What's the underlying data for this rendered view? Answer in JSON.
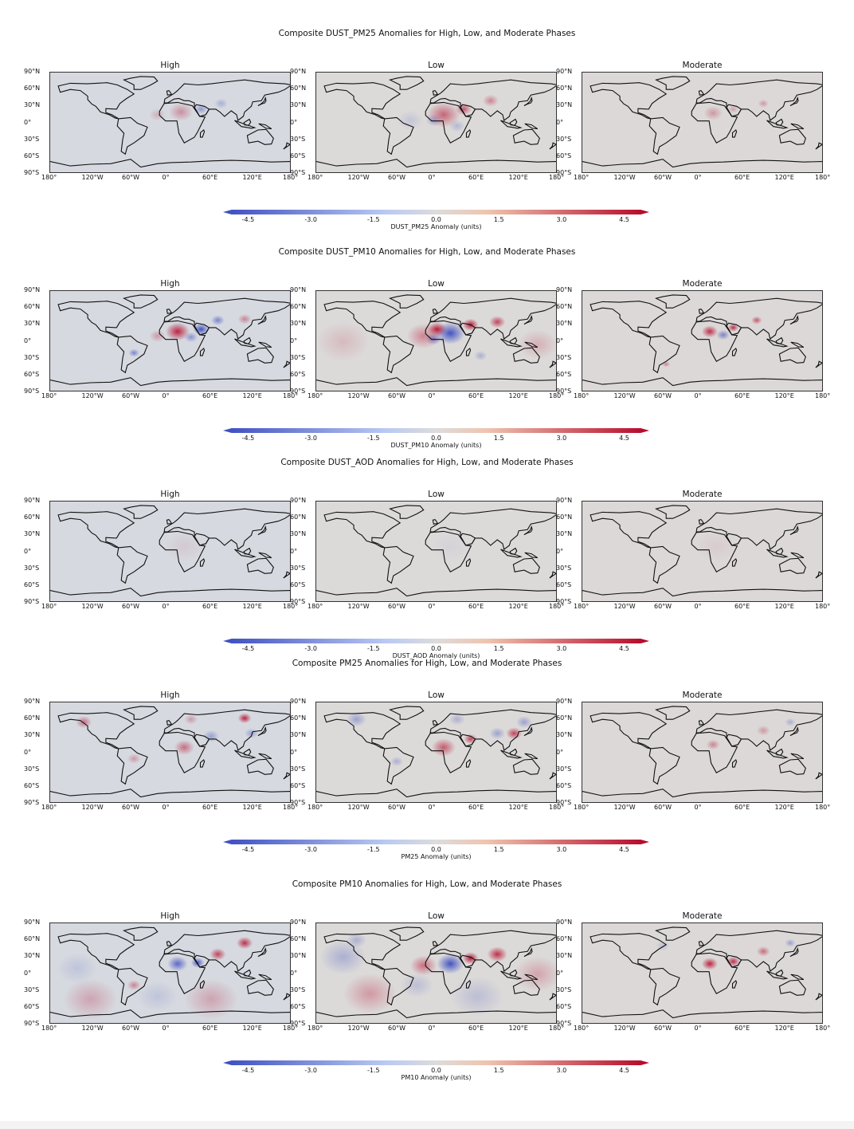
{
  "rows": [
    {
      "title": "Composite DUST_PM25 Anomalies for High, Low, and Moderate Phases",
      "colorbar_label": "DUST_PM25 Anomaly (units)"
    },
    {
      "title": "Composite DUST_PM10 Anomalies for High, Low, and Moderate Phases",
      "colorbar_label": "DUST_PM10 Anomaly (units)"
    },
    {
      "title": "Composite DUST_AOD Anomalies for High, Low, and Moderate Phases",
      "colorbar_label": "DUST_AOD Anomaly (units)"
    },
    {
      "title": "Composite PM25 Anomalies for High, Low, and Moderate Phases",
      "colorbar_label": "PM25 Anomaly (units)"
    },
    {
      "title": "Composite PM10 Anomalies for High, Low, and Moderate Phases",
      "colorbar_label": "PM10 Anomaly (units)"
    }
  ],
  "panels": [
    "High",
    "Low",
    "Moderate"
  ],
  "lat_ticks": [
    "90°N",
    "60°N",
    "30°N",
    "0°",
    "30°S",
    "60°S",
    "90°S"
  ],
  "lon_ticks": [
    "180°",
    "120°W",
    "60°W",
    "0°",
    "60°E",
    "120°E",
    "180°"
  ],
  "colorbar_ticks": [
    "-4.5",
    "-3.0",
    "-1.5",
    "0.0",
    "1.5",
    "3.0",
    "4.5"
  ],
  "colors": {
    "negative": "#3b4cc0",
    "neutral": "#dddcdc",
    "positive": "#b40426",
    "land_bg": "#d6d9df",
    "coast": "#111111"
  },
  "chart_data": {
    "type": "heatmap",
    "layout": "5 rows x 3 columns of global map panels",
    "projection": "PlateCarree",
    "xlim": [
      -180,
      180
    ],
    "ylim": [
      -90,
      90
    ],
    "color_range": [
      -4.5,
      4.5
    ],
    "colormap": "coolwarm",
    "variables": [
      "DUST_PM25",
      "DUST_PM10",
      "DUST_AOD",
      "PM25",
      "PM10"
    ],
    "phases": [
      "High",
      "Low",
      "Moderate"
    ]
  }
}
